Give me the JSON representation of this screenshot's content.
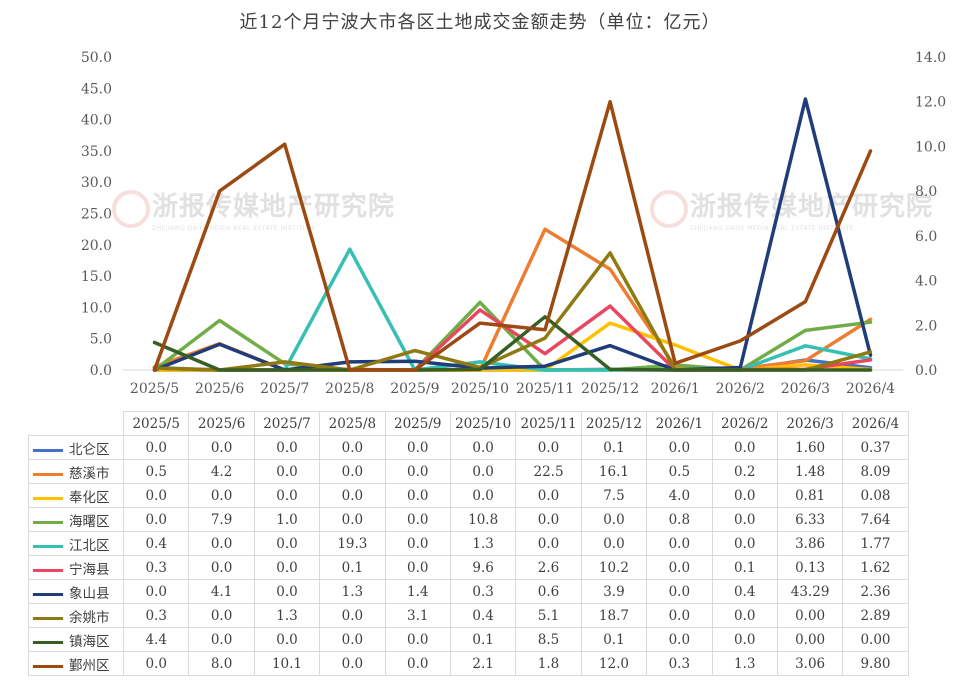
{
  "chart_data": {
    "type": "line",
    "title": "近12个月宁波大市各区土地成交金额走势（单位：亿元）",
    "categories": [
      "2025/5",
      "2025/6",
      "2025/7",
      "2025/8",
      "2025/9",
      "2025/10",
      "2025/11",
      "2025/12",
      "2026/1",
      "2026/2",
      "2026/3",
      "2026/4"
    ],
    "left_axis": {
      "min": 0,
      "max": 50,
      "step": 5,
      "ticks": [
        "0.0",
        "5.0",
        "10.0",
        "15.0",
        "20.0",
        "25.0",
        "30.0",
        "35.0",
        "40.0",
        "45.0",
        "50.0"
      ]
    },
    "right_axis": {
      "min": 0,
      "max": 14,
      "step": 2,
      "ticks": [
        "0.0",
        "2.0",
        "4.0",
        "6.0",
        "8.0",
        "10.0",
        "12.0",
        "14.0"
      ]
    },
    "series": [
      {
        "name": "北仑区",
        "color": "#4472c4",
        "axis": "left",
        "values": [
          0.0,
          0.0,
          0.0,
          0.0,
          0.0,
          0.0,
          0.0,
          0.1,
          0.0,
          0.0,
          1.6,
          0.37
        ],
        "labels": [
          "0.0",
          "0.0",
          "0.0",
          "0.0",
          "0.0",
          "0.0",
          "0.0",
          "0.1",
          "0.0",
          "0.0",
          "1.60",
          "0.37"
        ]
      },
      {
        "name": "慈溪市",
        "color": "#ed7d31",
        "axis": "left",
        "values": [
          0.5,
          4.2,
          0.0,
          0.0,
          0.0,
          0.0,
          22.5,
          16.1,
          0.5,
          0.2,
          1.48,
          8.09
        ],
        "labels": [
          "0.5",
          "4.2",
          "0.0",
          "0.0",
          "0.0",
          "0.0",
          "22.5",
          "16.1",
          "0.5",
          "0.2",
          "1.48",
          "8.09"
        ]
      },
      {
        "name": "奉化区",
        "color": "#ffc000",
        "axis": "left",
        "values": [
          0.0,
          0.0,
          0.0,
          0.0,
          0.0,
          0.0,
          0.0,
          7.5,
          4.0,
          0.0,
          0.81,
          0.08
        ],
        "labels": [
          "0.0",
          "0.0",
          "0.0",
          "0.0",
          "0.0",
          "0.0",
          "0.0",
          "7.5",
          "4.0",
          "0.0",
          "0.81",
          "0.08"
        ]
      },
      {
        "name": "海曙区",
        "color": "#70ad47",
        "axis": "left",
        "values": [
          0.0,
          7.9,
          1.0,
          0.0,
          0.0,
          10.8,
          0.0,
          0.0,
          0.8,
          0.0,
          6.33,
          7.64
        ],
        "labels": [
          "0.0",
          "7.9",
          "1.0",
          "0.0",
          "0.0",
          "10.8",
          "0.0",
          "0.0",
          "0.8",
          "0.0",
          "6.33",
          "7.64"
        ]
      },
      {
        "name": "江北区",
        "color": "#36c0b4",
        "axis": "left",
        "values": [
          0.4,
          0.0,
          0.0,
          19.3,
          0.0,
          1.3,
          0.0,
          0.0,
          0.0,
          0.0,
          3.86,
          1.77
        ],
        "labels": [
          "0.4",
          "0.0",
          "0.0",
          "19.3",
          "0.0",
          "1.3",
          "0.0",
          "0.0",
          "0.0",
          "0.0",
          "3.86",
          "1.77"
        ]
      },
      {
        "name": "宁海县",
        "color": "#e8475f",
        "axis": "left",
        "values": [
          0.3,
          0.0,
          0.0,
          0.1,
          0.0,
          9.6,
          2.6,
          10.2,
          0.0,
          0.1,
          0.13,
          1.62
        ],
        "labels": [
          "0.3",
          "0.0",
          "0.0",
          "0.1",
          "0.0",
          "9.6",
          "2.6",
          "10.2",
          "0.0",
          "0.1",
          "0.13",
          "1.62"
        ]
      },
      {
        "name": "象山县",
        "color": "#203d7a",
        "axis": "left",
        "values": [
          0.0,
          4.1,
          0.0,
          1.3,
          1.4,
          0.3,
          0.6,
          3.9,
          0.0,
          0.4,
          43.29,
          2.36
        ],
        "labels": [
          "0.0",
          "4.1",
          "0.0",
          "1.3",
          "1.4",
          "0.3",
          "0.6",
          "3.9",
          "0.0",
          "0.4",
          "43.29",
          "2.36"
        ]
      },
      {
        "name": "余姚市",
        "color": "#8f7a12",
        "axis": "left",
        "values": [
          0.3,
          0.0,
          1.3,
          0.0,
          3.1,
          0.4,
          5.1,
          18.7,
          0.0,
          0.0,
          0.0,
          2.89
        ],
        "labels": [
          "0.3",
          "0.0",
          "1.3",
          "0.0",
          "3.1",
          "0.4",
          "5.1",
          "18.7",
          "0.0",
          "0.0",
          "0.00",
          "2.89"
        ]
      },
      {
        "name": "镇海区",
        "color": "#375f23",
        "axis": "left",
        "values": [
          4.4,
          0.0,
          0.0,
          0.0,
          0.0,
          0.1,
          8.5,
          0.1,
          0.0,
          0.0,
          0.0,
          0.0
        ],
        "labels": [
          "4.4",
          "0.0",
          "0.0",
          "0.0",
          "0.0",
          "0.1",
          "8.5",
          "0.1",
          "0.0",
          "0.0",
          "0.00",
          "0.00"
        ]
      },
      {
        "name": "鄞州区",
        "color": "#9c4a12",
        "axis": "right",
        "values": [
          0.0,
          8.0,
          10.1,
          0.0,
          0.0,
          2.1,
          1.8,
          12.0,
          0.3,
          1.3,
          3.06,
          9.8
        ],
        "labels": [
          "0.0",
          "8.0",
          "10.1",
          "0.0",
          "0.0",
          "2.1",
          "1.8",
          "12.0",
          "0.3",
          "1.3",
          "3.06",
          "9.80"
        ]
      }
    ],
    "grid": false,
    "legend": "table-below"
  },
  "watermark": {
    "text": "浙报传媒地产研究院",
    "sub": "ZHEJIANG DAILY MEDIA REAL ESTATE INSTITUTE"
  }
}
